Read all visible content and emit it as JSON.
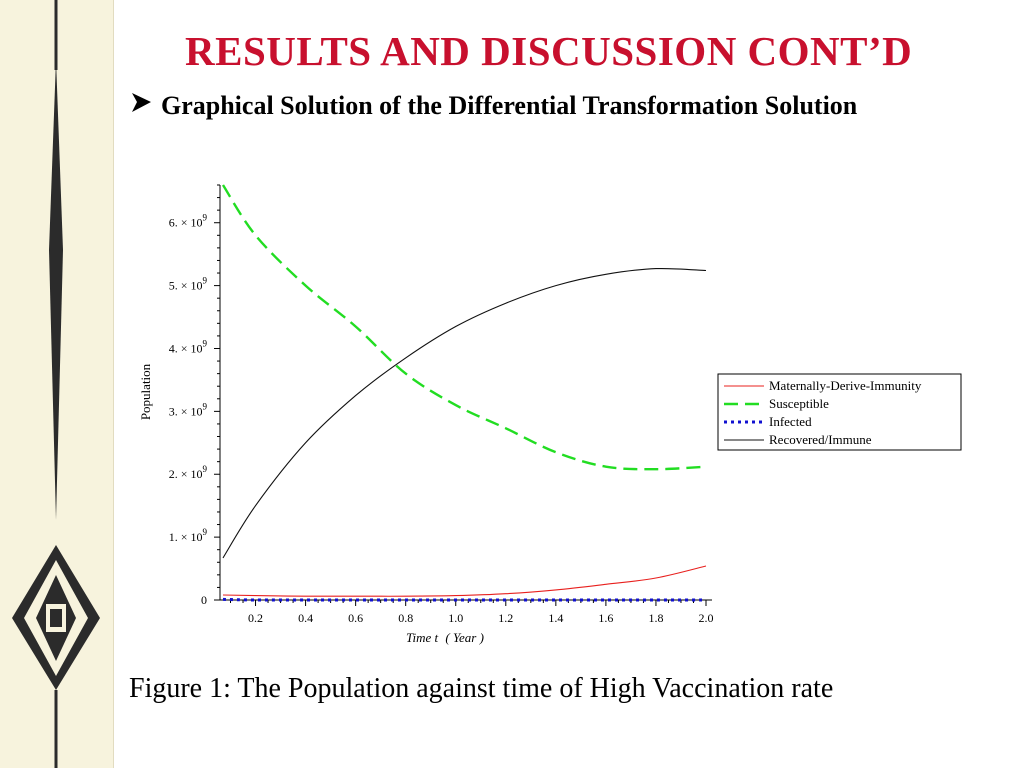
{
  "slide": {
    "title": "RESULTS AND DISCUSSION CONT’D",
    "bullet": "Graphical Solution of the Differential Transformation Solution",
    "caption": "Figure 1: The Population against time  of High Vaccination rate"
  },
  "colors": {
    "title": "#c8102e",
    "side_band": "#f7f3dd",
    "ornament": "#2b2b2b"
  },
  "chart_data": {
    "type": "line",
    "xlabel_var": "Time t",
    "xlabel_unit": "( Year )",
    "ylabel": "Population",
    "xlim": [
      0.07,
      2.0
    ],
    "ylim": [
      0,
      6.6
    ],
    "y_multiplier_text": "× 10",
    "y_exponent": "9",
    "x_ticks": [
      "0.2",
      "0.4",
      "0.6",
      "0.8",
      "1.0",
      "1.2",
      "1.4",
      "1.6",
      "1.8",
      "2.0"
    ],
    "y_ticks": [
      {
        "value": 0,
        "label": "0"
      },
      {
        "value": 1,
        "label": "1."
      },
      {
        "value": 2,
        "label": "2."
      },
      {
        "value": 3,
        "label": "3."
      },
      {
        "value": 4,
        "label": "4."
      },
      {
        "value": 5,
        "label": "5."
      },
      {
        "value": 6,
        "label": "6."
      }
    ],
    "legend_position": "right",
    "x": [
      0.07,
      0.2,
      0.4,
      0.6,
      0.8,
      1.0,
      1.2,
      1.4,
      1.6,
      1.8,
      2.0
    ],
    "series": [
      {
        "name": "Maternally-Derive-Immunity",
        "color": "#e8201e",
        "dash": "solid",
        "values": [
          0.08,
          0.07,
          0.06,
          0.06,
          0.06,
          0.07,
          0.1,
          0.16,
          0.25,
          0.35,
          0.54
        ]
      },
      {
        "name": "Susceptible",
        "color": "#22dd22",
        "dash": "dashed",
        "values": [
          6.6,
          5.8,
          5.0,
          4.35,
          3.6,
          3.1,
          2.73,
          2.35,
          2.12,
          2.08,
          2.12
        ]
      },
      {
        "name": "Infected",
        "color": "#1010d0",
        "dash": "dotted",
        "values": [
          0.01,
          0.0,
          0.0,
          0.0,
          0.0,
          0.0,
          0.0,
          0.0,
          0.0,
          0.0,
          0.0
        ]
      },
      {
        "name": "Recovered/Immune",
        "color": "#111111",
        "dash": "solid",
        "values": [
          0.67,
          1.5,
          2.5,
          3.25,
          3.85,
          4.35,
          4.72,
          5.0,
          5.18,
          5.27,
          5.24
        ]
      }
    ]
  }
}
